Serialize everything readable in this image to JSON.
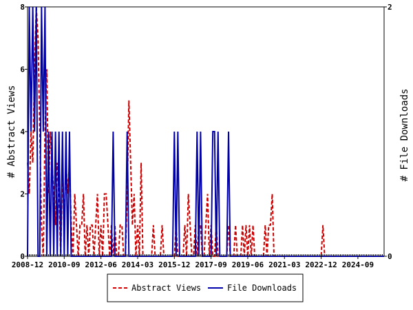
{
  "chart_data": {
    "type": "line",
    "title": "",
    "xlabel": "",
    "ylabel_left": "# Abstract Views",
    "ylabel_right": "# File Downloads",
    "x_range": [
      "2008-12",
      "2025-12"
    ],
    "ylim_left": [
      0,
      8
    ],
    "ylim_right": [
      0,
      2
    ],
    "x_ticks": [
      "2008-12",
      "2010-09",
      "2012-06",
      "2014-03",
      "2015-12",
      "2017-09",
      "2019-06",
      "2021-03",
      "2022-12",
      "2024-09"
    ],
    "y_ticks_left": [
      "0",
      "2",
      "4",
      "6",
      "8"
    ],
    "y_ticks_right": [
      "0",
      "2"
    ],
    "grid": false,
    "legend_position": "bottom",
    "series": [
      {
        "name": "Abstract Views",
        "axis": "left",
        "color": "#cc0000",
        "style": "dashed",
        "points": [
          [
            "2008-12",
            3
          ],
          [
            "2009-01",
            2
          ],
          [
            "2009-02",
            4
          ],
          [
            "2009-03",
            3
          ],
          [
            "2009-04",
            6
          ],
          [
            "2009-05",
            8
          ],
          [
            "2009-06",
            7
          ],
          [
            "2009-07",
            4
          ],
          [
            "2009-08",
            1
          ],
          [
            "2009-09",
            0
          ],
          [
            "2009-10",
            4
          ],
          [
            "2009-11",
            6
          ],
          [
            "2009-12",
            2
          ],
          [
            "2010-01",
            4
          ],
          [
            "2010-02",
            3
          ],
          [
            "2010-03",
            2
          ],
          [
            "2010-04",
            1
          ],
          [
            "2010-05",
            3
          ],
          [
            "2010-06",
            2
          ],
          [
            "2010-07",
            0
          ],
          [
            "2010-08",
            3
          ],
          [
            "2010-09",
            1
          ],
          [
            "2010-10",
            3
          ],
          [
            "2010-11",
            2
          ],
          [
            "2010-12",
            3
          ],
          [
            "2011-01",
            1
          ],
          [
            "2011-02",
            0
          ],
          [
            "2011-03",
            2
          ],
          [
            "2011-04",
            1
          ],
          [
            "2011-05",
            0
          ],
          [
            "2011-06",
            1
          ],
          [
            "2011-07",
            1
          ],
          [
            "2011-08",
            2
          ],
          [
            "2011-09",
            0
          ],
          [
            "2011-10",
            1
          ],
          [
            "2011-11",
            0
          ],
          [
            "2011-12",
            1
          ],
          [
            "2012-01",
            1
          ],
          [
            "2012-02",
            0
          ],
          [
            "2012-03",
            1
          ],
          [
            "2012-04",
            2
          ],
          [
            "2012-05",
            0
          ],
          [
            "2012-06",
            1
          ],
          [
            "2012-07",
            0
          ],
          [
            "2012-08",
            2
          ],
          [
            "2012-09",
            2
          ],
          [
            "2012-10",
            1
          ],
          [
            "2012-11",
            0
          ],
          [
            "2012-12",
            1
          ],
          [
            "2013-01",
            0
          ],
          [
            "2013-02",
            1
          ],
          [
            "2013-03",
            0
          ],
          [
            "2013-04",
            0
          ],
          [
            "2013-05",
            1
          ],
          [
            "2013-06",
            1
          ],
          [
            "2013-07",
            0
          ],
          [
            "2013-08",
            0
          ],
          [
            "2013-09",
            2
          ],
          [
            "2013-10",
            5
          ],
          [
            "2013-11",
            3
          ],
          [
            "2013-12",
            1
          ],
          [
            "2014-01",
            2
          ],
          [
            "2014-02",
            0
          ],
          [
            "2014-03",
            1
          ],
          [
            "2014-04",
            0
          ],
          [
            "2014-05",
            3
          ],
          [
            "2014-06",
            0
          ],
          [
            "2014-07",
            0
          ],
          [
            "2014-08",
            0
          ],
          [
            "2014-09",
            0
          ],
          [
            "2014-10",
            0
          ],
          [
            "2014-11",
            0
          ],
          [
            "2014-12",
            1
          ],
          [
            "2015-01",
            0
          ],
          [
            "2015-02",
            0
          ],
          [
            "2015-03",
            0
          ],
          [
            "2015-04",
            0
          ],
          [
            "2015-05",
            1
          ],
          [
            "2015-06",
            0
          ],
          [
            "2015-07",
            0
          ],
          [
            "2015-08",
            0
          ],
          [
            "2015-09",
            0
          ],
          [
            "2015-10",
            0
          ],
          [
            "2015-11",
            0
          ],
          [
            "2015-12",
            0
          ],
          [
            "2016-01",
            1
          ],
          [
            "2016-02",
            0
          ],
          [
            "2016-03",
            0
          ],
          [
            "2016-04",
            0
          ],
          [
            "2016-05",
            0
          ],
          [
            "2016-06",
            1
          ],
          [
            "2016-07",
            0
          ],
          [
            "2016-08",
            2
          ],
          [
            "2016-09",
            1
          ],
          [
            "2016-10",
            0
          ],
          [
            "2016-11",
            0
          ],
          [
            "2016-12",
            1
          ],
          [
            "2017-01",
            0
          ],
          [
            "2017-02",
            1
          ],
          [
            "2017-03",
            1
          ],
          [
            "2017-04",
            0
          ],
          [
            "2017-05",
            0
          ],
          [
            "2017-06",
            1
          ],
          [
            "2017-07",
            2
          ],
          [
            "2017-08",
            0
          ],
          [
            "2017-09",
            1
          ],
          [
            "2017-10",
            0
          ],
          [
            "2017-11",
            0
          ],
          [
            "2017-12",
            1
          ],
          [
            "2018-01",
            0
          ],
          [
            "2018-02",
            0
          ],
          [
            "2018-03",
            0
          ],
          [
            "2018-04",
            0
          ],
          [
            "2018-05",
            0
          ],
          [
            "2018-06",
            0
          ],
          [
            "2018-07",
            1
          ],
          [
            "2018-08",
            0
          ],
          [
            "2018-09",
            0
          ],
          [
            "2018-10",
            0
          ],
          [
            "2018-11",
            1
          ],
          [
            "2018-12",
            0
          ],
          [
            "2019-01",
            0
          ],
          [
            "2019-02",
            0
          ],
          [
            "2019-03",
            1
          ],
          [
            "2019-04",
            0
          ],
          [
            "2019-05",
            1
          ],
          [
            "2019-06",
            0
          ],
          [
            "2019-07",
            1
          ],
          [
            "2019-08",
            0
          ],
          [
            "2019-09",
            1
          ],
          [
            "2019-10",
            0
          ],
          [
            "2019-11",
            0
          ],
          [
            "2019-12",
            0
          ],
          [
            "2020-01",
            0
          ],
          [
            "2020-02",
            0
          ],
          [
            "2020-03",
            0
          ],
          [
            "2020-04",
            1
          ],
          [
            "2020-05",
            0
          ],
          [
            "2020-06",
            1
          ],
          [
            "2020-07",
            1
          ],
          [
            "2020-08",
            2
          ],
          [
            "2020-09",
            0
          ],
          [
            "2020-10",
            0
          ],
          [
            "2020-11",
            0
          ],
          [
            "2020-12",
            0
          ],
          [
            "2021-01",
            0
          ],
          [
            "2021-02",
            0
          ],
          [
            "2022-12",
            0
          ],
          [
            "2023-01",
            1
          ],
          [
            "2023-02",
            0
          ],
          [
            "2025-12",
            0
          ]
        ]
      },
      {
        "name": "File Downloads",
        "axis": "right",
        "color": "#0000aa",
        "style": "solid",
        "points": [
          [
            "2008-12",
            0
          ],
          [
            "2009-01",
            2
          ],
          [
            "2009-02",
            1
          ],
          [
            "2009-03",
            2
          ],
          [
            "2009-04",
            1
          ],
          [
            "2009-05",
            2
          ],
          [
            "2009-06",
            0
          ],
          [
            "2009-07",
            0
          ],
          [
            "2009-08",
            2
          ],
          [
            "2009-09",
            1
          ],
          [
            "2009-10",
            2
          ],
          [
            "2009-11",
            0
          ],
          [
            "2009-12",
            1
          ],
          [
            "2010-01",
            0
          ],
          [
            "2010-02",
            1
          ],
          [
            "2010-03",
            0
          ],
          [
            "2010-04",
            1
          ],
          [
            "2010-05",
            0
          ],
          [
            "2010-06",
            1
          ],
          [
            "2010-07",
            0
          ],
          [
            "2010-08",
            1
          ],
          [
            "2010-09",
            0
          ],
          [
            "2010-10",
            1
          ],
          [
            "2010-11",
            0
          ],
          [
            "2010-12",
            1
          ],
          [
            "2011-01",
            0
          ],
          [
            "2011-02",
            0
          ],
          [
            "2011-03",
            0
          ],
          [
            "2011-04",
            0
          ],
          [
            "2011-05",
            0
          ],
          [
            "2011-06",
            0
          ],
          [
            "2011-07",
            0
          ],
          [
            "2011-08",
            0
          ],
          [
            "2011-09",
            0
          ],
          [
            "2011-10",
            0
          ],
          [
            "2011-11",
            0
          ],
          [
            "2011-12",
            0
          ],
          [
            "2012-01",
            0
          ],
          [
            "2012-02",
            0
          ],
          [
            "2012-03",
            0
          ],
          [
            "2012-04",
            0
          ],
          [
            "2012-05",
            0
          ],
          [
            "2012-06",
            0
          ],
          [
            "2012-07",
            0
          ],
          [
            "2012-08",
            0
          ],
          [
            "2012-09",
            0
          ],
          [
            "2012-10",
            0
          ],
          [
            "2012-11",
            0
          ],
          [
            "2012-12",
            0
          ],
          [
            "2013-01",
            1
          ],
          [
            "2013-02",
            0
          ],
          [
            "2013-03",
            0
          ],
          [
            "2013-04",
            0
          ],
          [
            "2013-05",
            0
          ],
          [
            "2013-06",
            0
          ],
          [
            "2013-07",
            0
          ],
          [
            "2013-08",
            0
          ],
          [
            "2013-09",
            1
          ],
          [
            "2013-10",
            0
          ],
          [
            "2013-11",
            0
          ],
          [
            "2013-12",
            0
          ],
          [
            "2014-01",
            0
          ],
          [
            "2014-02",
            0
          ],
          [
            "2014-03",
            0
          ],
          [
            "2014-04",
            0
          ],
          [
            "2014-05",
            0
          ],
          [
            "2014-06",
            0
          ],
          [
            "2014-07",
            0
          ],
          [
            "2014-08",
            0
          ],
          [
            "2014-09",
            0
          ],
          [
            "2014-10",
            0
          ],
          [
            "2014-11",
            0
          ],
          [
            "2014-12",
            0
          ],
          [
            "2015-01",
            0
          ],
          [
            "2015-02",
            0
          ],
          [
            "2015-03",
            0
          ],
          [
            "2015-04",
            0
          ],
          [
            "2015-05",
            0
          ],
          [
            "2015-06",
            0
          ],
          [
            "2015-07",
            0
          ],
          [
            "2015-08",
            0
          ],
          [
            "2015-09",
            0
          ],
          [
            "2015-10",
            0
          ],
          [
            "2015-11",
            0
          ],
          [
            "2015-12",
            1
          ],
          [
            "2016-01",
            0
          ],
          [
            "2016-02",
            1
          ],
          [
            "2016-03",
            0
          ],
          [
            "2016-04",
            0
          ],
          [
            "2016-05",
            0
          ],
          [
            "2016-06",
            0
          ],
          [
            "2016-07",
            0
          ],
          [
            "2016-08",
            0
          ],
          [
            "2016-09",
            0
          ],
          [
            "2016-10",
            0
          ],
          [
            "2016-11",
            0
          ],
          [
            "2016-12",
            0
          ],
          [
            "2017-01",
            1
          ],
          [
            "2017-02",
            0
          ],
          [
            "2017-03",
            1
          ],
          [
            "2017-04",
            0
          ],
          [
            "2017-05",
            0
          ],
          [
            "2017-06",
            0
          ],
          [
            "2017-07",
            0
          ],
          [
            "2017-08",
            0
          ],
          [
            "2017-09",
            0
          ],
          [
            "2017-10",
            1
          ],
          [
            "2017-11",
            1
          ],
          [
            "2017-12",
            0
          ],
          [
            "2018-01",
            1
          ],
          [
            "2018-02",
            0
          ],
          [
            "2018-03",
            0
          ],
          [
            "2018-04",
            0
          ],
          [
            "2018-05",
            0
          ],
          [
            "2018-06",
            0
          ],
          [
            "2018-07",
            1
          ],
          [
            "2018-08",
            0
          ],
          [
            "2018-09",
            0
          ],
          [
            "2018-10",
            0
          ],
          [
            "2018-11",
            0
          ],
          [
            "2018-12",
            0
          ],
          [
            "2025-12",
            0
          ]
        ]
      }
    ]
  }
}
